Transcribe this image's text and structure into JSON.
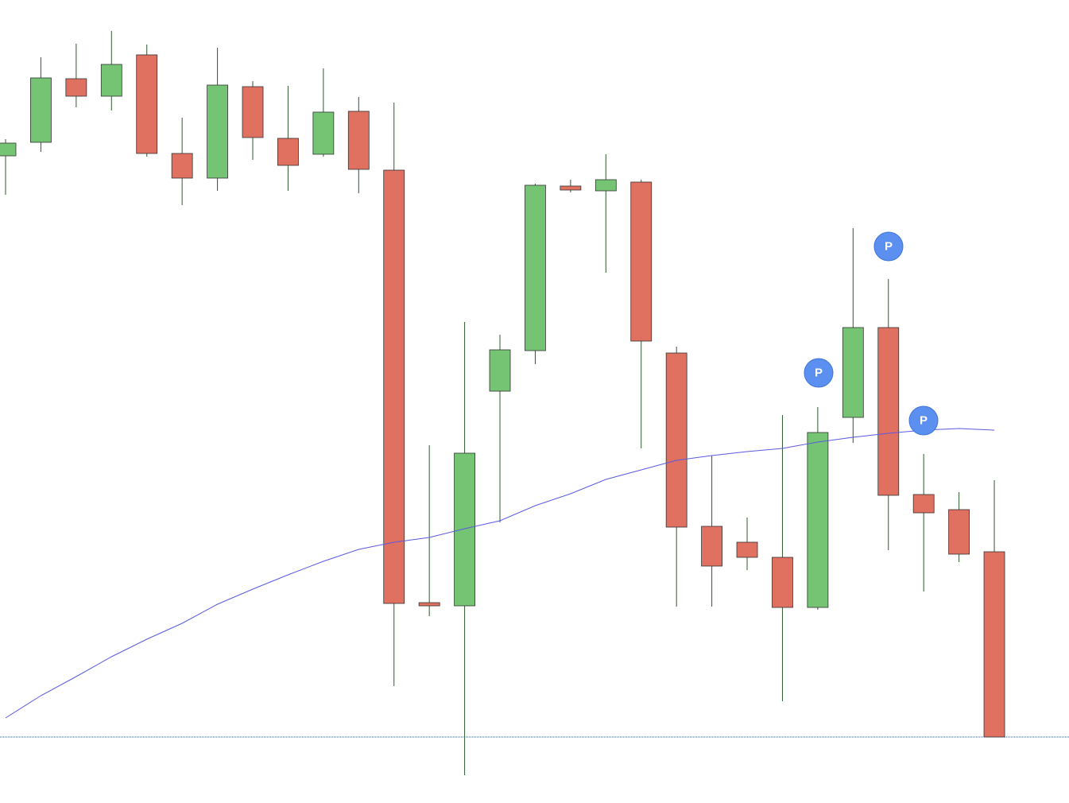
{
  "chart_data": {
    "type": "candlestick",
    "categories": [
      null,
      null,
      null,
      null,
      null,
      null,
      null,
      null,
      null,
      null,
      null,
      null,
      null,
      null,
      null,
      null,
      null,
      null,
      null,
      null,
      null,
      null,
      null,
      null,
      null,
      null,
      null,
      null,
      null
    ],
    "open": [
      814,
      831,
      911,
      889,
      941,
      817,
      786,
      901,
      836,
      816,
      870,
      796,
      252,
      248,
      518,
      569,
      776,
      770,
      781,
      566,
      348,
      328,
      309,
      246,
      485,
      598,
      388,
      369,
      316
    ],
    "high": [
      835,
      938,
      955,
      971,
      954,
      862,
      950,
      908,
      902,
      924,
      888,
      881,
      450,
      605,
      589,
      779,
      784,
      816,
      784,
      574,
      437,
      359,
      488,
      498,
      723,
      659,
      439,
      391,
      406
    ],
    "low": [
      765,
      819,
      875,
      871,
      813,
      752,
      770,
      809,
      770,
      813,
      767,
      147,
      235,
      35,
      353,
      552,
      768,
      667,
      446,
      247,
      247,
      293,
      128,
      243,
      453,
      318,
      266,
      303,
      83
    ],
    "close": [
      830,
      912,
      889,
      929,
      817,
      786,
      903,
      837,
      802,
      869,
      797,
      251,
      248,
      440,
      570,
      777,
      771,
      784,
      581,
      347,
      298,
      309,
      246,
      466,
      598,
      387,
      365,
      313,
      83
    ],
    "up_color": "#74c474",
    "down_color": "#e07060",
    "moving_average": {
      "color": "#5a5ae0",
      "values": [
        107,
        135,
        159,
        184,
        206,
        226,
        250,
        269,
        287,
        304,
        319,
        328,
        334,
        345,
        355,
        374,
        389,
        407,
        419,
        431,
        437,
        442,
        446,
        454,
        460,
        465,
        469,
        471,
        469
      ]
    },
    "annotations": [
      "P",
      "P",
      "P"
    ],
    "ylim": [
      0,
      1010
    ]
  }
}
